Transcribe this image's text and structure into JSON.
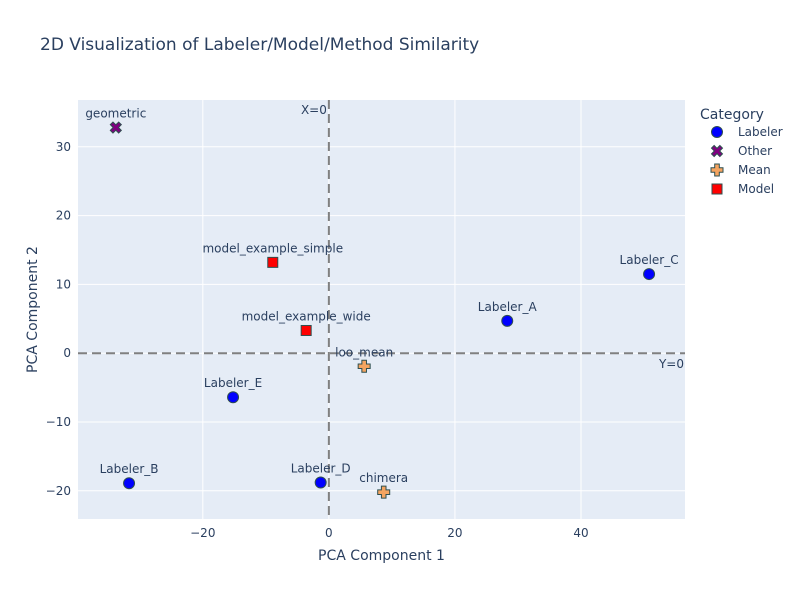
{
  "chart_data": {
    "type": "scatter",
    "title": "2D Visualization of Labeler/Model/Method Similarity",
    "xlabel": "PCA Component 1",
    "ylabel": "PCA Component 2",
    "xlim": [
      -39.8,
      56.5
    ],
    "ylim": [
      -24.1,
      36.8
    ],
    "xticks": [
      -20,
      0,
      20,
      40
    ],
    "yticks": [
      -20,
      -10,
      0,
      10,
      20,
      30
    ],
    "grid": true,
    "legend": {
      "title": "Category",
      "placement": "right"
    },
    "reference_lines": [
      {
        "orientation": "vertical",
        "value": 0,
        "label": "X=0"
      },
      {
        "orientation": "horizontal",
        "value": 0,
        "label": "Y=0"
      }
    ],
    "series": [
      {
        "name": "Labeler",
        "symbol": "circle",
        "color": "#0000ff",
        "points": [
          {
            "label": "Labeler_C",
            "x": 50.8,
            "y": 11.5
          },
          {
            "label": "Labeler_A",
            "x": 28.3,
            "y": 4.7
          },
          {
            "label": "Labeler_E",
            "x": -15.2,
            "y": -6.4
          },
          {
            "label": "Labeler_B",
            "x": -31.7,
            "y": -18.9
          },
          {
            "label": "Labeler_D",
            "x": -1.3,
            "y": -18.8
          }
        ]
      },
      {
        "name": "Other",
        "symbol": "x",
        "color": "#800080",
        "points": [
          {
            "label": "geometric",
            "x": -33.8,
            "y": 32.8
          }
        ]
      },
      {
        "name": "Mean",
        "symbol": "cross",
        "color": "#f4a460",
        "points": [
          {
            "label": "loo_mean",
            "x": 5.6,
            "y": -1.9
          },
          {
            "label": "chimera",
            "x": 8.7,
            "y": -20.2
          }
        ]
      },
      {
        "name": "Model",
        "symbol": "square",
        "color": "#ff0000",
        "points": [
          {
            "label": "model_example_simple",
            "x": -8.9,
            "y": 13.2
          },
          {
            "label": "model_example_wide",
            "x": -3.6,
            "y": 3.3
          }
        ]
      }
    ]
  }
}
